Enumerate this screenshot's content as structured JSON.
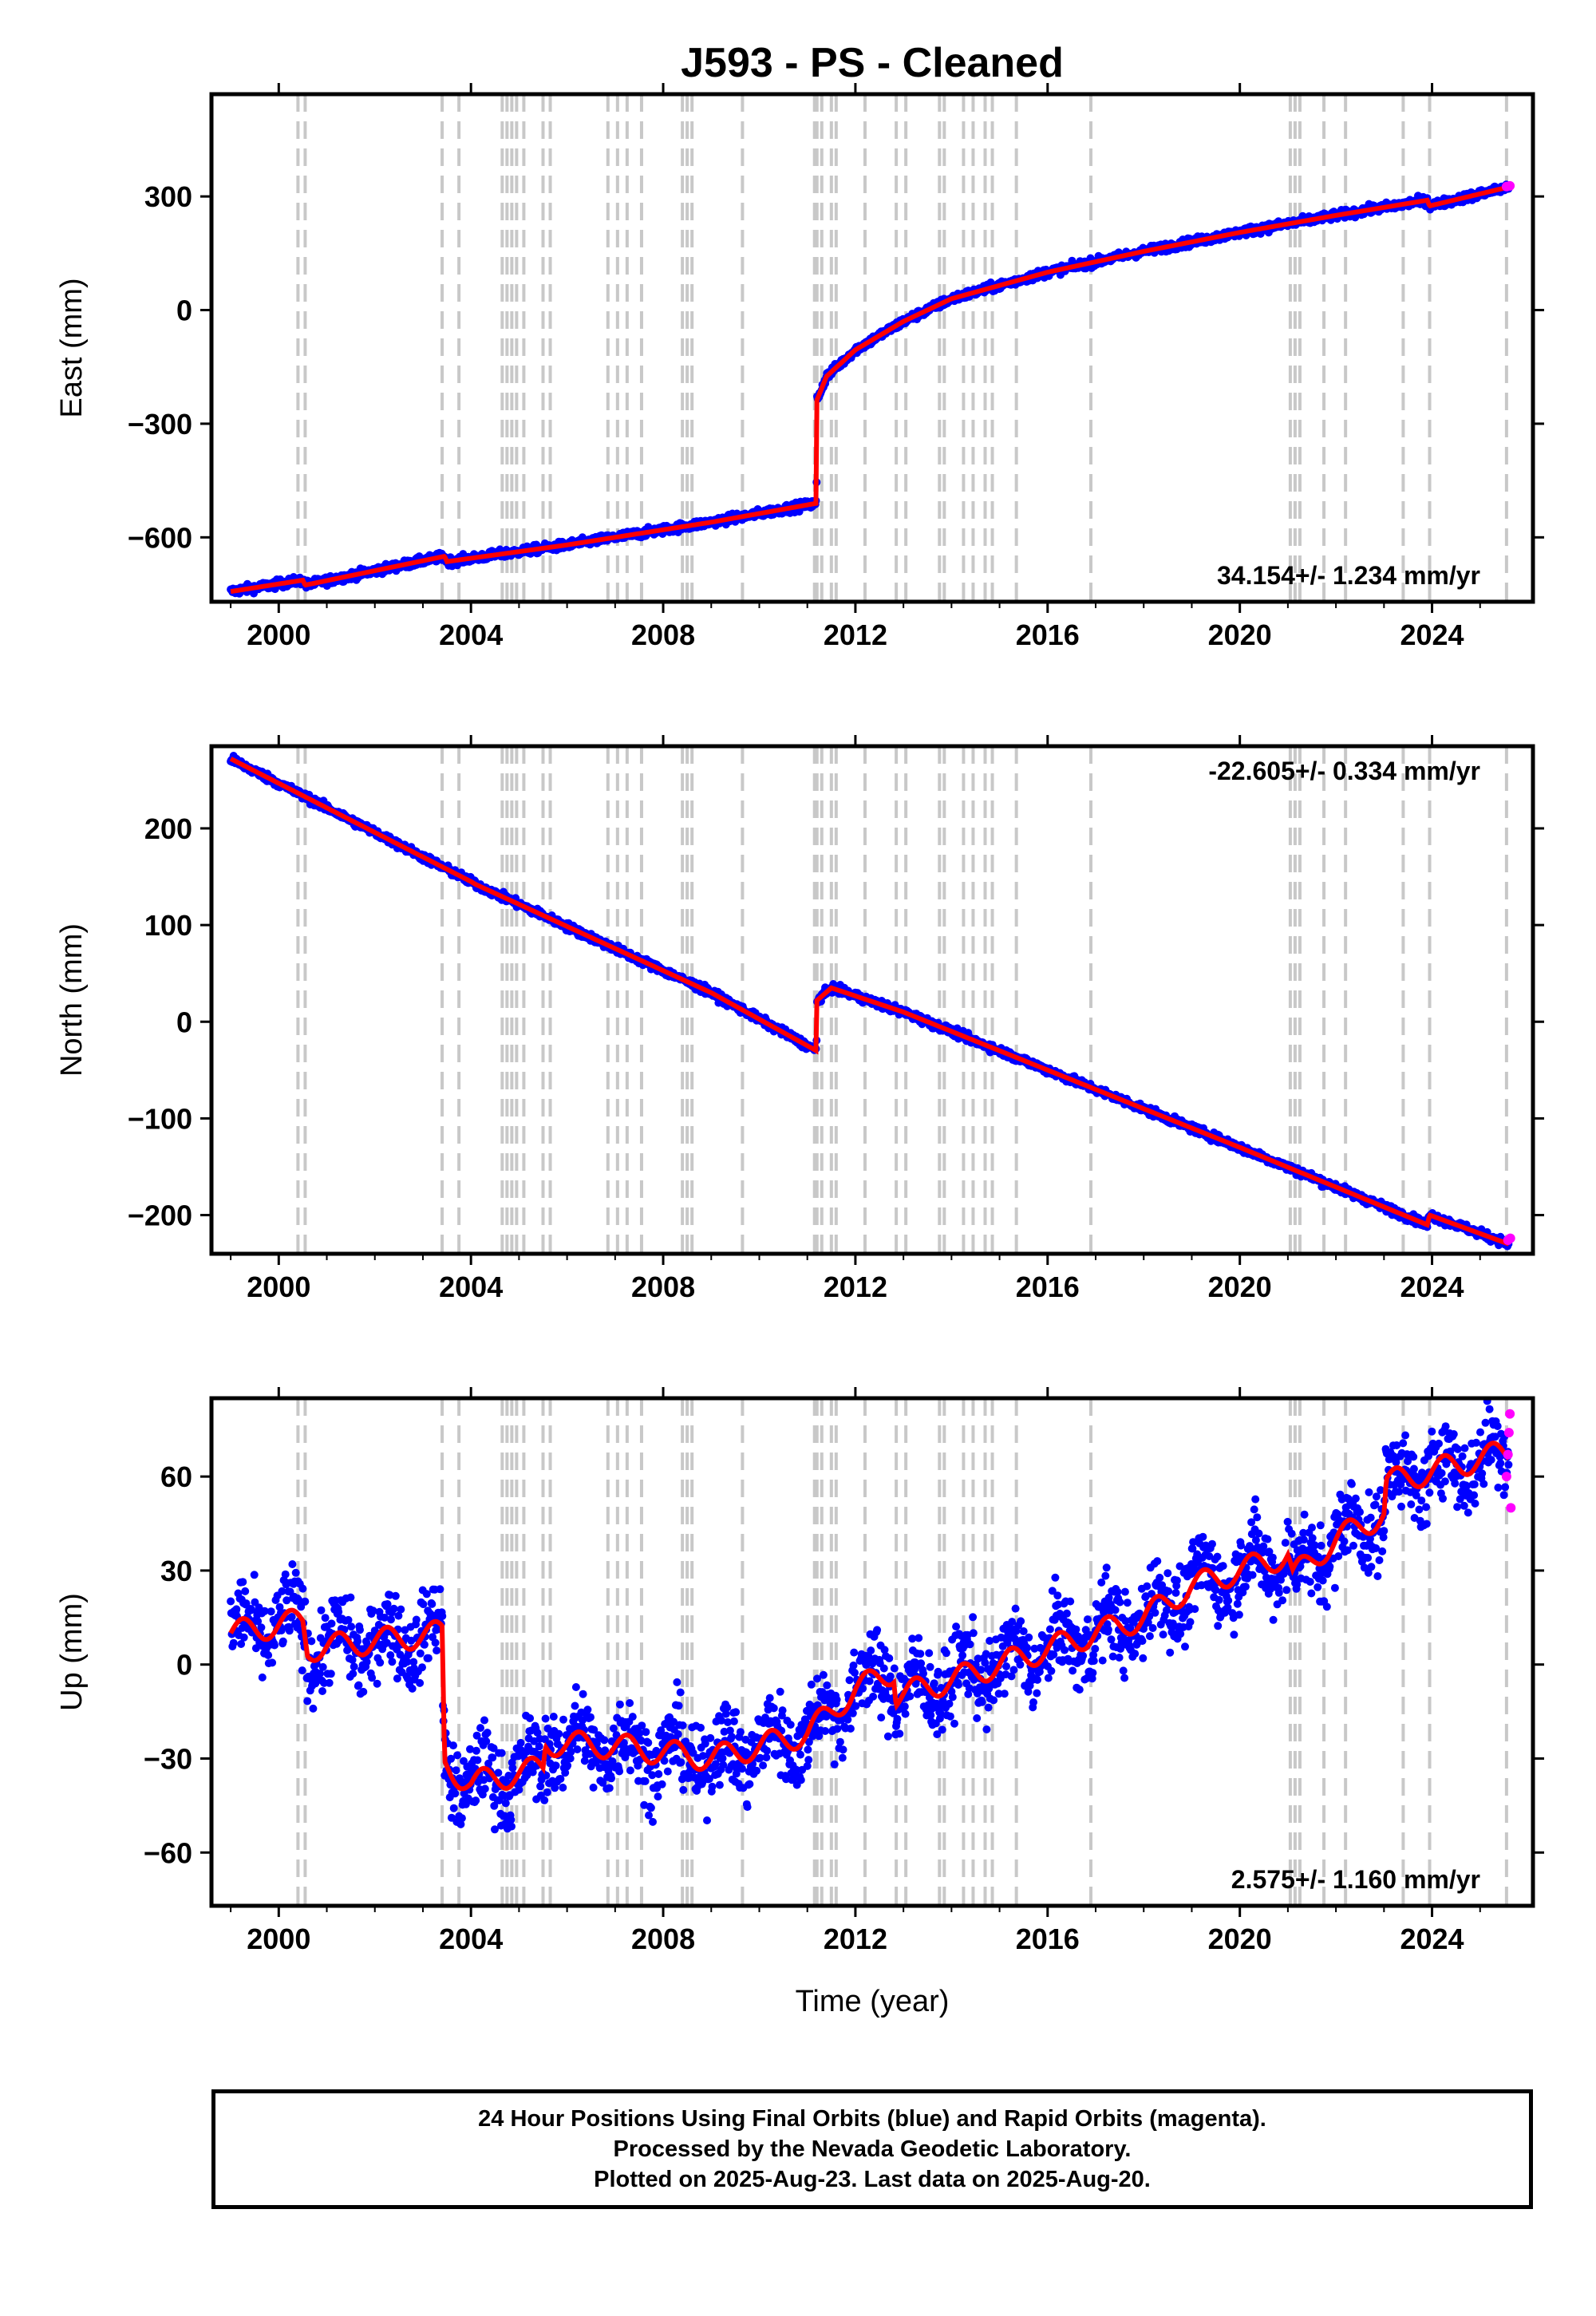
{
  "title": "J593  - PS - Cleaned",
  "xlabel": "Time (year)",
  "footer": {
    "line1": "24 Hour Positions Using Final Orbits (blue) and Rapid Orbits (magenta).",
    "line2": "Processed by the Nevada Geodetic Laboratory.",
    "line3": "Plotted on 2025-Aug-23. Last data on 2025-Aug-20."
  },
  "colors": {
    "final_orbits": "#0000ff",
    "rapid_orbits": "#ff00ff",
    "model": "#ff0000",
    "event_lines": "#c8c8c8"
  },
  "chart_data": [
    {
      "type": "scatter",
      "name": "east",
      "ylabel": "East (mm)",
      "rate_label": "34.154+/- 1.234 mm/yr",
      "rate_position": "bottom-right",
      "xlim": [
        1998.6,
        2026.1
      ],
      "ylim": [
        -770,
        570
      ],
      "xticks": [
        2000,
        2004,
        2008,
        2012,
        2016,
        2020,
        2024
      ],
      "yticks": [
        300,
        0,
        -300,
        -600
      ],
      "ytick_labels": [
        "300",
        "0",
        "−300",
        "−600"
      ],
      "model": [
        [
          1999.0,
          -743
        ],
        [
          2000.5,
          -713
        ],
        [
          2000.55,
          -726
        ],
        [
          2003.45,
          -650
        ],
        [
          2003.5,
          -664
        ],
        [
          2006.0,
          -620
        ],
        [
          2009.0,
          -560
        ],
        [
          2011.19,
          -510
        ],
        [
          2011.2,
          -237
        ],
        [
          2011.4,
          -175
        ],
        [
          2012.0,
          -105
        ],
        [
          2013.0,
          -30
        ],
        [
          2014.0,
          30
        ],
        [
          2016.0,
          100
        ],
        [
          2018.0,
          155
        ],
        [
          2020.0,
          205
        ],
        [
          2022.0,
          250
        ],
        [
          2023.9,
          290
        ],
        [
          2023.95,
          275
        ],
        [
          2025.6,
          325
        ]
      ],
      "rapid_points": [
        [
          2025.55,
          326
        ],
        [
          2025.62,
          328
        ]
      ],
      "noise": 8
    },
    {
      "type": "scatter",
      "name": "north",
      "ylabel": "North (mm)",
      "rate_label": "-22.605+/- 0.334 mm/yr",
      "rate_position": "top-right",
      "xlim": [
        1998.6,
        2026.1
      ],
      "ylim": [
        -240,
        285
      ],
      "xticks": [
        2000,
        2004,
        2008,
        2012,
        2016,
        2020,
        2024
      ],
      "yticks": [
        200,
        100,
        0,
        -100,
        -200
      ],
      "ytick_labels": [
        "200",
        "100",
        "0",
        "−100",
        "−200"
      ],
      "model": [
        [
          1999.0,
          272
        ],
        [
          2004.0,
          145
        ],
        [
          2004.1,
          142
        ],
        [
          2009.0,
          30
        ],
        [
          2011.19,
          -30
        ],
        [
          2011.2,
          22
        ],
        [
          2011.5,
          35
        ],
        [
          2013.0,
          10
        ],
        [
          2016.0,
          -50
        ],
        [
          2020.0,
          -130
        ],
        [
          2023.9,
          -210
        ],
        [
          2023.95,
          -200
        ],
        [
          2025.6,
          -230
        ]
      ],
      "rapid_points": [
        [
          2025.58,
          -226
        ],
        [
          2025.63,
          -224
        ]
      ],
      "noise": 3
    },
    {
      "type": "scatter",
      "name": "up",
      "ylabel": "Up (mm)",
      "rate_label": "2.575+/- 1.160 mm/yr",
      "rate_position": "bottom-right",
      "xlim": [
        1998.6,
        2026.1
      ],
      "ylim": [
        -77,
        85
      ],
      "xticks": [
        2000,
        2004,
        2008,
        2012,
        2016,
        2020,
        2024
      ],
      "yticks": [
        60,
        30,
        0,
        -30,
        -60
      ],
      "ytick_labels": [
        "60",
        "30",
        "0",
        "−30",
        "−60"
      ],
      "model": [
        [
          1999.0,
          10
        ],
        [
          2000.5,
          14
        ],
        [
          2000.6,
          5
        ],
        [
          2003.4,
          10
        ],
        [
          2003.45,
          -32
        ],
        [
          2004.0,
          -38
        ],
        [
          2005.5,
          -33
        ],
        [
          2005.55,
          -25
        ],
        [
          2007.0,
          -26
        ],
        [
          2009.0,
          -30
        ],
        [
          2011.0,
          -22
        ],
        [
          2012.0,
          -8
        ],
        [
          2012.8,
          -2
        ],
        [
          2012.85,
          -10
        ],
        [
          2014.0,
          -5
        ],
        [
          2016.0,
          5
        ],
        [
          2018.0,
          15
        ],
        [
          2019.0,
          25
        ],
        [
          2021.0,
          35
        ],
        [
          2021.1,
          28
        ],
        [
          2022.0,
          40
        ],
        [
          2023.0,
          48
        ],
        [
          2023.05,
          58
        ],
        [
          2025.6,
          68
        ]
      ],
      "rapid_points": [
        [
          2025.55,
          60
        ],
        [
          2025.58,
          67
        ],
        [
          2025.6,
          74
        ],
        [
          2025.62,
          80
        ],
        [
          2025.64,
          50
        ]
      ],
      "noise": 9
    }
  ],
  "event_lines": [
    2000.4,
    2000.55,
    2003.4,
    2003.75,
    2004.65,
    2004.75,
    2004.85,
    2004.95,
    2005.1,
    2005.5,
    2005.65,
    2006.85,
    2007.05,
    2007.25,
    2007.55,
    2008.4,
    2008.5,
    2008.6,
    2009.65,
    2011.15,
    2011.2,
    2011.3,
    2011.5,
    2011.6,
    2012.2,
    2012.85,
    2013.05,
    2013.75,
    2013.85,
    2014.25,
    2014.45,
    2014.7,
    2014.85,
    2015.35,
    2016.9,
    2021.05,
    2021.15,
    2021.25,
    2021.75,
    2022.2,
    2023.4,
    2023.95,
    2025.55
  ]
}
